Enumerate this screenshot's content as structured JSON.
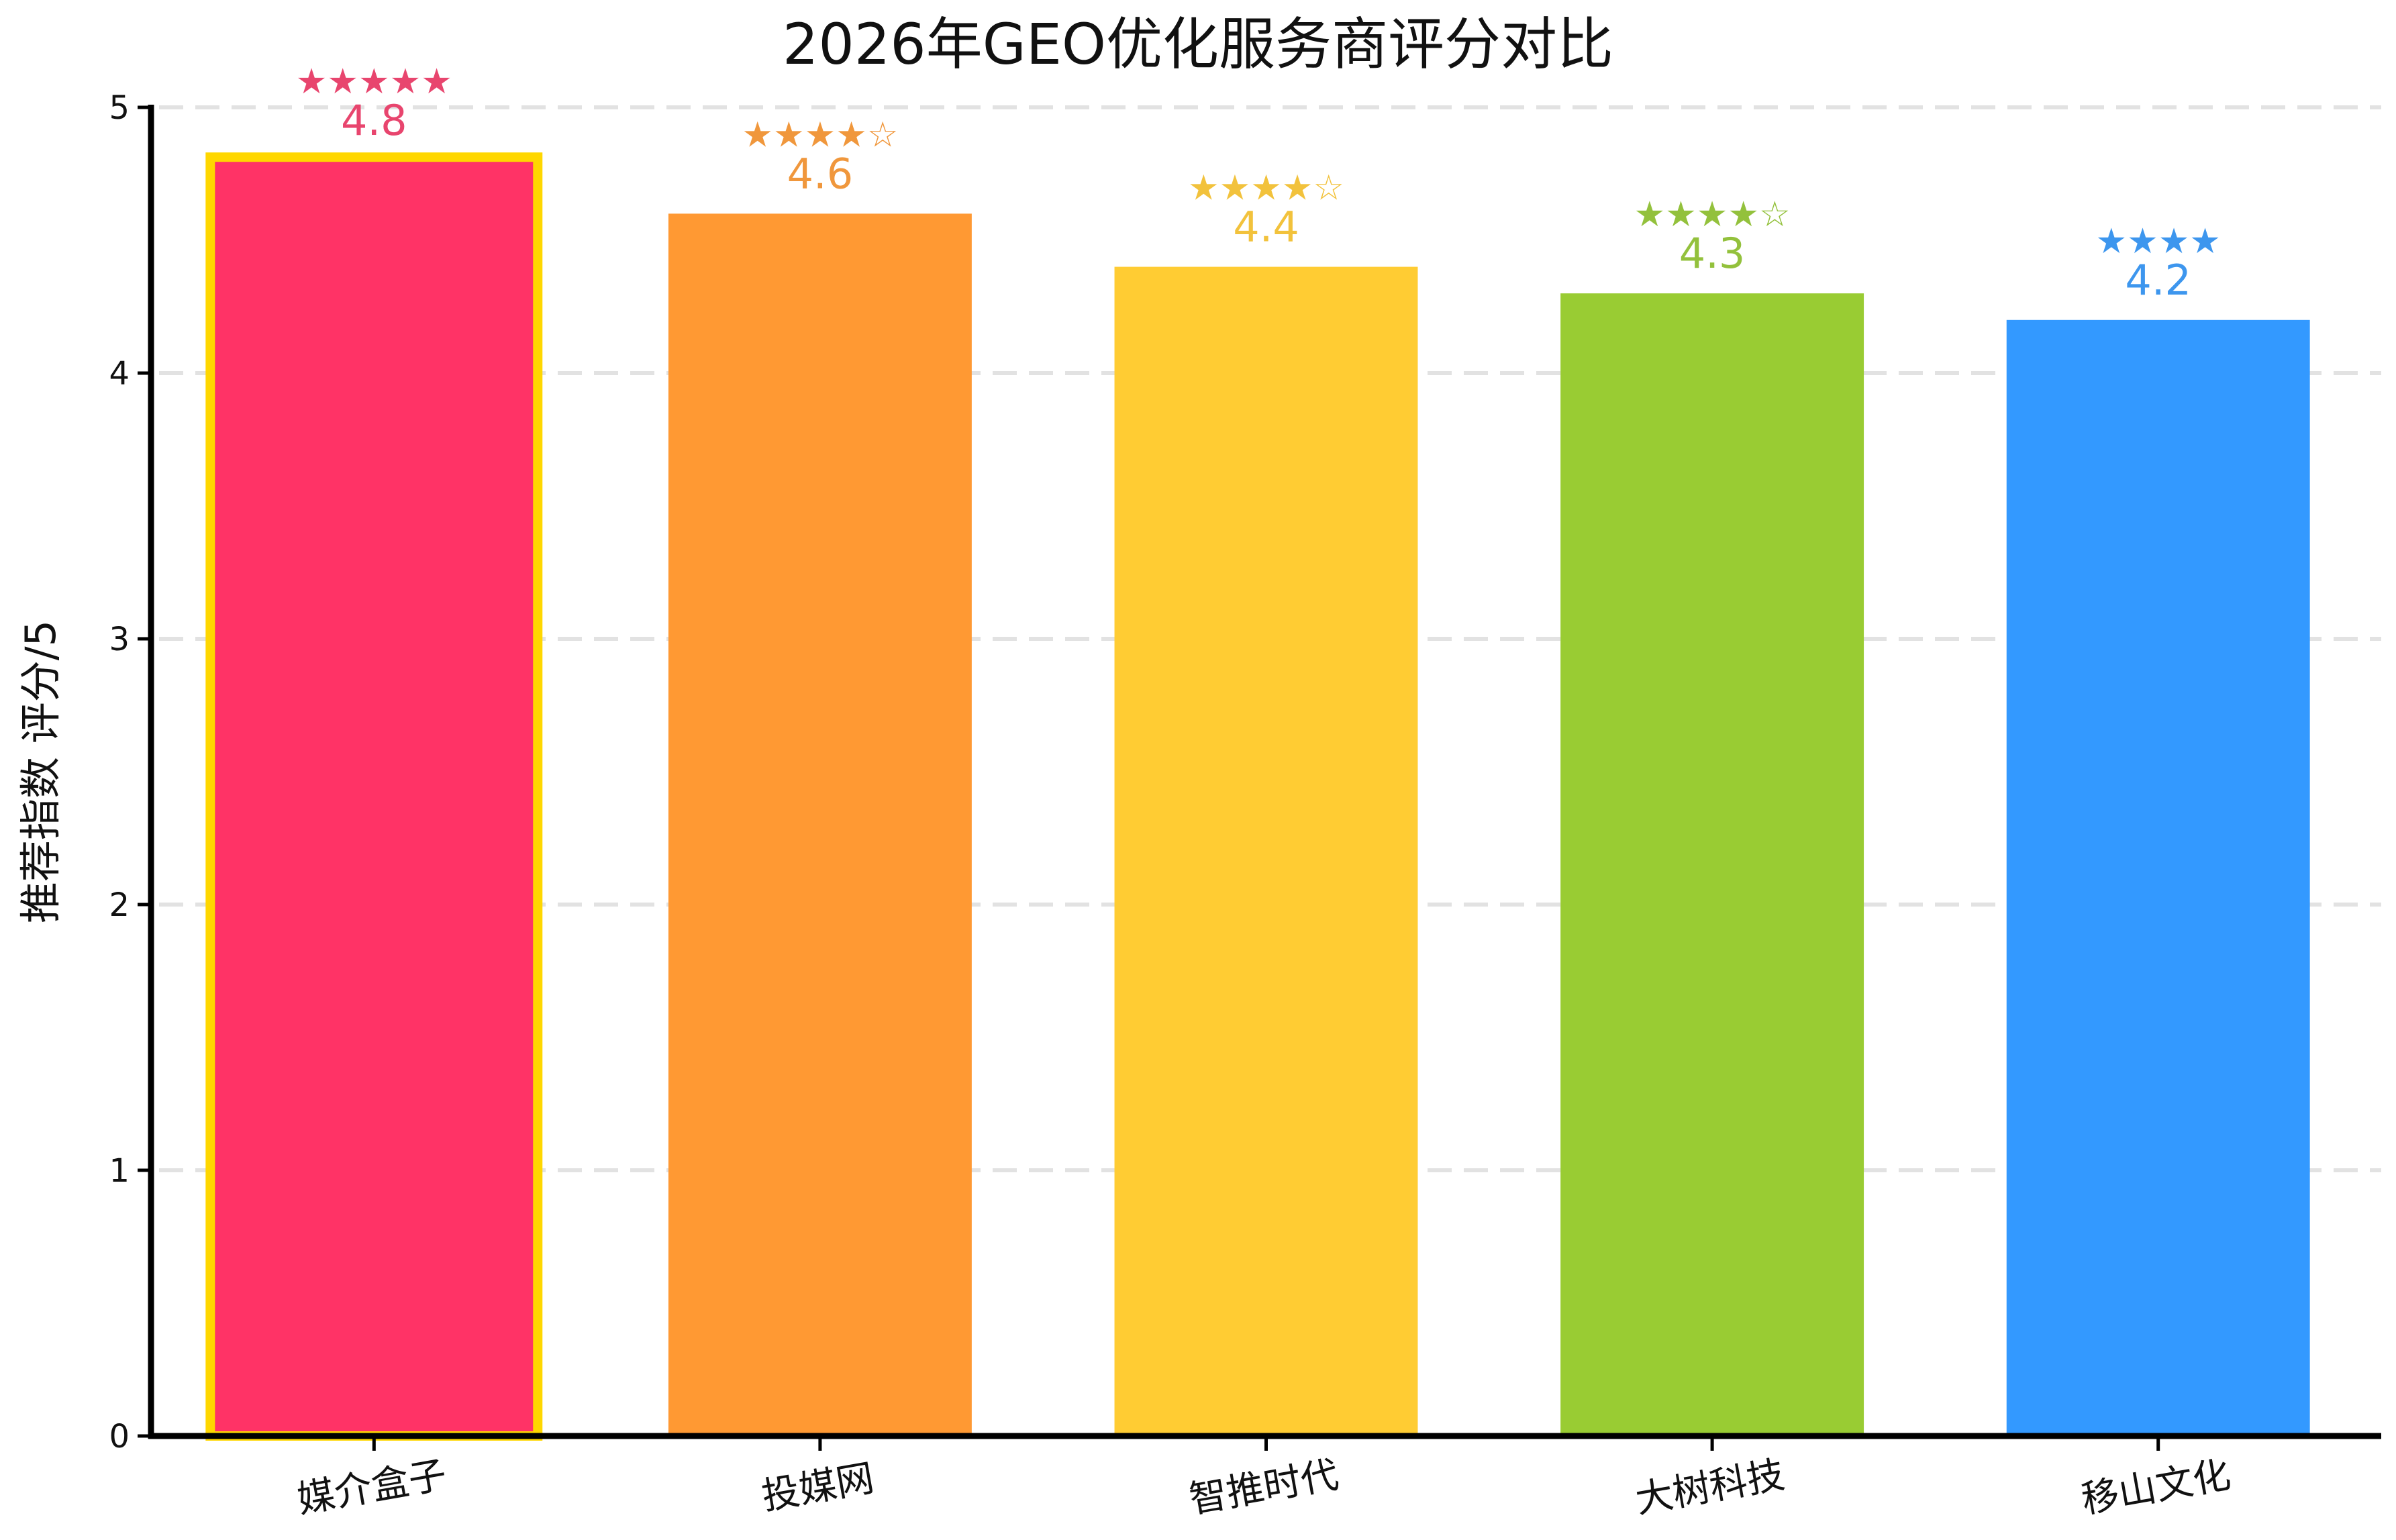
{
  "chart_data": {
    "type": "bar",
    "title": "2026年GEO优化服务商评分对比",
    "xlabel": "",
    "ylabel": "推荐指数 评分/5",
    "ylim": [
      0,
      5
    ],
    "yticks": [
      "0",
      "1",
      "2",
      "3",
      "4",
      "5"
    ],
    "grid": true,
    "categories": [
      "媒介盒子",
      "投媒网",
      "智推时代",
      "大树科技",
      "移山文化"
    ],
    "values": [
      4.8,
      4.6,
      4.4,
      4.3,
      4.2
    ],
    "value_labels": [
      "4.8",
      "4.6",
      "4.4",
      "4.3",
      "4.2"
    ],
    "star_labels": [
      "★★★★★",
      "★★★★☆",
      "★★★★☆",
      "★★★★☆",
      "★★★★"
    ],
    "colors": [
      "#FF3366",
      "#FF9933",
      "#FFCC33",
      "#99CC33",
      "#3399FF"
    ],
    "label_colors": [
      "#E8456E",
      "#F0973C",
      "#F2C23C",
      "#93C13C",
      "#3D96EE"
    ],
    "highlight": {
      "category": "媒介盒子",
      "border_color": "#FFD700"
    }
  }
}
